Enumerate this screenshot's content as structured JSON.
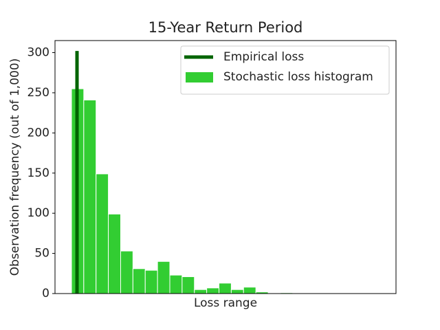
{
  "chart_data": {
    "type": "histogram",
    "title": "15-Year Return Period",
    "xlabel": "Loss range",
    "ylabel": "Observation frequency (out of 1,000)",
    "bins": [
      0,
      1,
      2,
      3,
      4,
      5,
      6,
      7,
      8,
      9,
      10,
      11,
      12,
      13,
      14,
      15,
      16,
      17,
      18
    ],
    "series": [
      {
        "name": "Stochastic loss histogram",
        "color": "#32cd32",
        "values": [
          255,
          241,
          149,
          99,
          53,
          31,
          29,
          40,
          23,
          21,
          5,
          7,
          13,
          5,
          8,
          2,
          0,
          1
        ]
      }
    ],
    "vlines": [
      {
        "name": "Empirical loss",
        "color": "#006400",
        "x": 0.45,
        "value": 302
      }
    ],
    "xlim": [
      -1.34,
      26.4
    ],
    "ylim": [
      0,
      315
    ],
    "yticks": [
      0,
      50,
      100,
      150,
      200,
      250,
      300
    ],
    "legend": "upper right"
  }
}
